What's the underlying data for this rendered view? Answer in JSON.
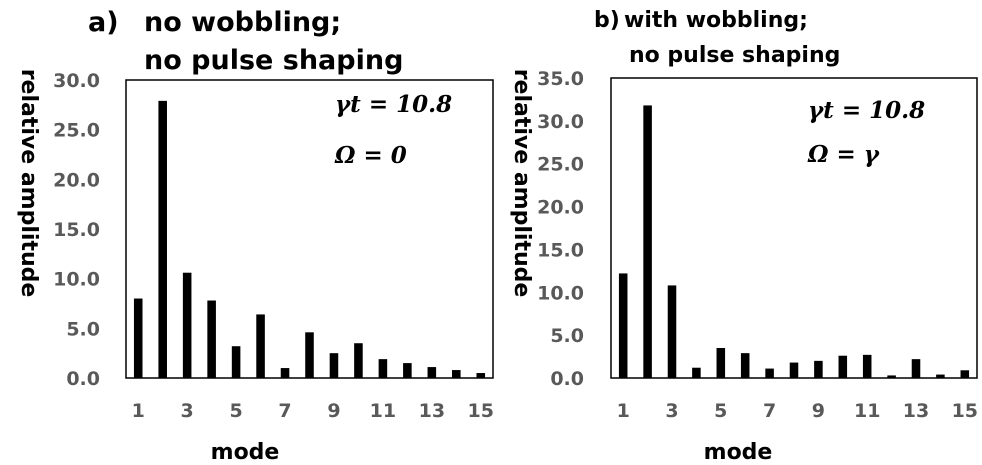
{
  "chart_data": [
    {
      "type": "bar",
      "panel_label": "a)",
      "title_line1": "no wobbling;",
      "title_line2": "no pulse shaping",
      "xlabel": "mode",
      "ylabel": "relative amplitude",
      "ylim": [
        0,
        30
      ],
      "yticks": [
        "0.0",
        "5.0",
        "10.0",
        "15.0",
        "20.0",
        "25.0",
        "30.0"
      ],
      "xticks": [
        "1",
        "3",
        "5",
        "7",
        "9",
        "11",
        "13",
        "15"
      ],
      "categories": [
        1,
        2,
        3,
        4,
        5,
        6,
        7,
        8,
        9,
        10,
        11,
        12,
        13,
        14,
        15
      ],
      "values": [
        8.0,
        27.9,
        10.6,
        7.8,
        3.2,
        6.4,
        1.0,
        4.6,
        2.5,
        3.5,
        1.9,
        1.5,
        1.1,
        0.8,
        0.5
      ],
      "annotation1": "γt = 10.8",
      "annotation2": "Ω = 0",
      "bar_color": "#000000"
    },
    {
      "type": "bar",
      "panel_label": "b)",
      "title_line1": "with wobbling;",
      "title_line2": "no pulse shaping",
      "xlabel": "mode",
      "ylabel": "relative amplitude",
      "ylim": [
        0,
        35
      ],
      "yticks": [
        "0.0",
        "5.0",
        "10.0",
        "15.0",
        "20.0",
        "25.0",
        "30.0",
        "35.0"
      ],
      "xticks": [
        "1",
        "3",
        "5",
        "7",
        "9",
        "11",
        "13",
        "15"
      ],
      "categories": [
        1,
        2,
        3,
        4,
        5,
        6,
        7,
        8,
        9,
        10,
        11,
        12,
        13,
        14,
        15
      ],
      "values": [
        12.2,
        31.8,
        10.8,
        1.2,
        3.5,
        2.9,
        1.1,
        1.8,
        2.0,
        2.6,
        2.7,
        0.3,
        2.2,
        0.4,
        0.9
      ],
      "annotation1": "γt = 10.8",
      "annotation2": "Ω = γ",
      "bar_color": "#000000"
    }
  ]
}
